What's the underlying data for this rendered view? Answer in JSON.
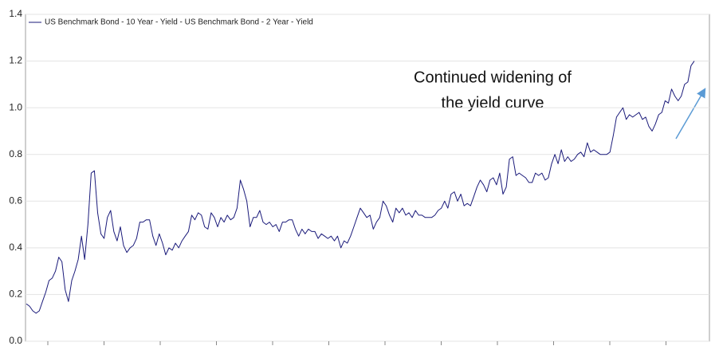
{
  "chart_data": {
    "type": "line",
    "legend": "top-left",
    "grid": true,
    "annotation": [
      "Continued widening of",
      "the yield curve"
    ],
    "ylim": [
      0,
      1.4
    ],
    "yticks": [
      {
        "value": 0,
        "label": "0.0"
      },
      {
        "value": 0.2,
        "label": "0.2"
      },
      {
        "value": 0.4,
        "label": "0.4"
      },
      {
        "value": 0.6,
        "label": "0.6"
      },
      {
        "value": 0.8,
        "label": "0.8"
      },
      {
        "value": 1,
        "label": "1.0"
      },
      {
        "value": 1.2,
        "label": "1.2"
      },
      {
        "value": 1.4,
        "label": "1.4"
      }
    ],
    "series": [
      {
        "name": "US Benchmark Bond - 10 Year - Yield - US Benchmark Bond - 2 Year - Yield",
        "color": "#1a1a7a",
        "values": [
          0.16,
          0.15,
          0.13,
          0.12,
          0.13,
          0.17,
          0.21,
          0.26,
          0.27,
          0.3,
          0.36,
          0.34,
          0.22,
          0.17,
          0.26,
          0.3,
          0.35,
          0.45,
          0.35,
          0.5,
          0.72,
          0.73,
          0.55,
          0.46,
          0.44,
          0.53,
          0.56,
          0.47,
          0.43,
          0.49,
          0.41,
          0.38,
          0.4,
          0.41,
          0.44,
          0.51,
          0.51,
          0.52,
          0.52,
          0.45,
          0.41,
          0.46,
          0.42,
          0.37,
          0.4,
          0.39,
          0.42,
          0.4,
          0.43,
          0.45,
          0.47,
          0.54,
          0.52,
          0.55,
          0.54,
          0.49,
          0.48,
          0.55,
          0.53,
          0.49,
          0.53,
          0.51,
          0.54,
          0.52,
          0.53,
          0.57,
          0.69,
          0.65,
          0.6,
          0.49,
          0.53,
          0.53,
          0.56,
          0.51,
          0.5,
          0.51,
          0.49,
          0.5,
          0.47,
          0.51,
          0.51,
          0.52,
          0.52,
          0.48,
          0.45,
          0.48,
          0.46,
          0.48,
          0.47,
          0.47,
          0.44,
          0.46,
          0.45,
          0.44,
          0.45,
          0.43,
          0.45,
          0.4,
          0.43,
          0.42,
          0.45,
          0.49,
          0.53,
          0.57,
          0.55,
          0.53,
          0.54,
          0.48,
          0.51,
          0.53,
          0.6,
          0.58,
          0.54,
          0.51,
          0.57,
          0.55,
          0.57,
          0.54,
          0.55,
          0.53,
          0.56,
          0.54,
          0.54,
          0.53,
          0.53,
          0.53,
          0.54,
          0.56,
          0.57,
          0.6,
          0.57,
          0.63,
          0.64,
          0.6,
          0.63,
          0.58,
          0.59,
          0.58,
          0.62,
          0.66,
          0.69,
          0.67,
          0.64,
          0.69,
          0.7,
          0.67,
          0.72,
          0.63,
          0.66,
          0.78,
          0.79,
          0.71,
          0.72,
          0.71,
          0.7,
          0.68,
          0.68,
          0.72,
          0.71,
          0.72,
          0.69,
          0.7,
          0.76,
          0.8,
          0.76,
          0.82,
          0.77,
          0.79,
          0.77,
          0.78,
          0.8,
          0.81,
          0.79,
          0.85,
          0.81,
          0.82,
          0.81,
          0.8,
          0.8,
          0.8,
          0.81,
          0.88,
          0.96,
          0.98,
          1.0,
          0.95,
          0.97,
          0.96,
          0.97,
          0.98,
          0.95,
          0.96,
          0.92,
          0.9,
          0.93,
          0.97,
          0.98,
          1.03,
          1.02,
          1.08,
          1.05,
          1.03,
          1.05,
          1.1,
          1.11,
          1.18,
          1.2
        ]
      }
    ]
  }
}
